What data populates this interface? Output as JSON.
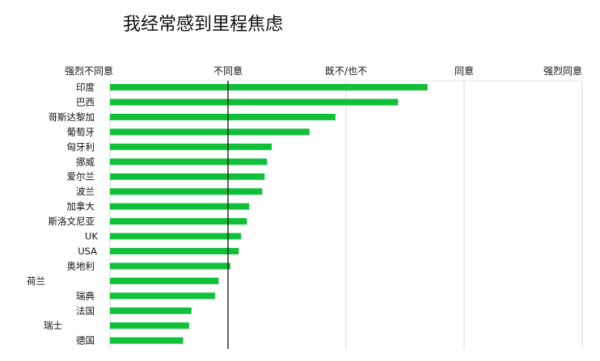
{
  "title": "我经常感到里程焦虑",
  "chart_data": {
    "type": "bar",
    "orientation": "horizontal",
    "title": "我经常感到里程焦虑",
    "scale_labels": [
      "强烈不同意",
      "不同意",
      "既不/也不",
      "同意",
      "强烈同意"
    ],
    "xlim": [
      1,
      5
    ],
    "reference_line": 2,
    "grid": true,
    "categories": [
      "印度",
      "巴西",
      "哥斯达黎加",
      "葡萄牙",
      "匈牙利",
      "挪威",
      "爱尔兰",
      "波兰",
      "加拿大",
      "斯洛文尼亚",
      "UK",
      "USA",
      "奥地利",
      "荷兰",
      "瑞典",
      "法国",
      "瑞士",
      "德国"
    ],
    "values": [
      3.69,
      3.44,
      2.91,
      2.69,
      2.37,
      2.33,
      2.31,
      2.29,
      2.18,
      2.16,
      2.11,
      2.09,
      2.02,
      1.92,
      1.89,
      1.69,
      1.67,
      1.62
    ],
    "colors": {
      "bar": "#10c038",
      "grid": "#d9d9d9",
      "reference": "#111111"
    }
  }
}
